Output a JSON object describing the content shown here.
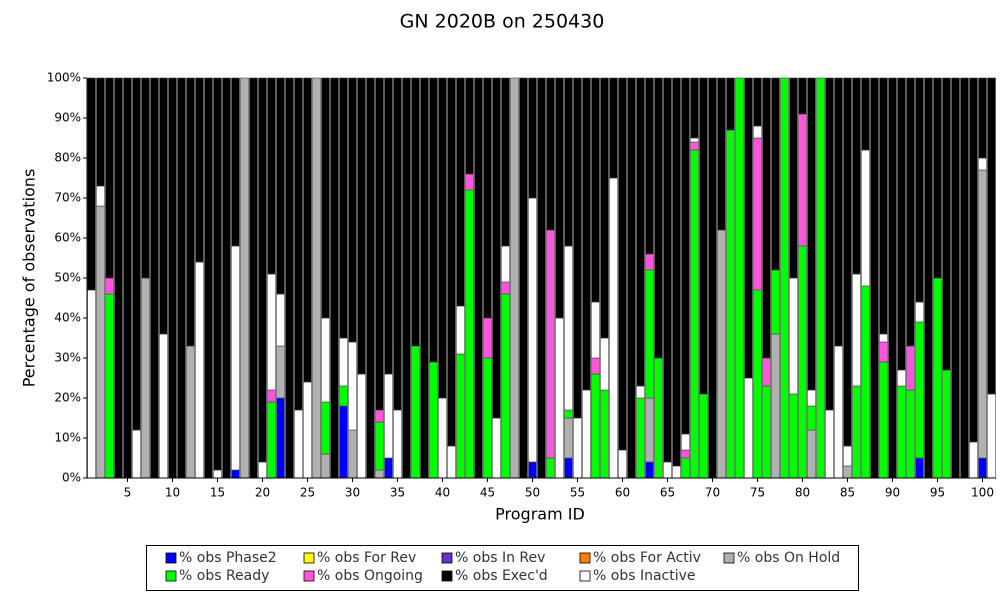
{
  "chart_data": {
    "type": "stacked_bar",
    "title": "GN 2020B on 250430",
    "x_label": "Program ID",
    "y_label": "Percentage of observations",
    "x": [
      1,
      2,
      3,
      4,
      5,
      6,
      7,
      8,
      9,
      10,
      11,
      12,
      13,
      14,
      15,
      16,
      17,
      18,
      19,
      20,
      21,
      22,
      23,
      24,
      25,
      26,
      27,
      28,
      29,
      30,
      31,
      32,
      33,
      34,
      35,
      36,
      37,
      38,
      39,
      40,
      41,
      42,
      43,
      44,
      45,
      46,
      47,
      48,
      49,
      50,
      51,
      52,
      53,
      54,
      55,
      56,
      57,
      58,
      59,
      60,
      61,
      62,
      63,
      64,
      65,
      66,
      67,
      68,
      69,
      70,
      71,
      72,
      73,
      74,
      75,
      76,
      77,
      78,
      79,
      80,
      81,
      82,
      83,
      84,
      85,
      86,
      87,
      88,
      89,
      90,
      91,
      92,
      93,
      94,
      95,
      96,
      97,
      98,
      99,
      100,
      101
    ],
    "xlim": [
      0.5,
      101.5
    ],
    "xticks": [
      5,
      10,
      15,
      20,
      25,
      30,
      35,
      40,
      45,
      50,
      55,
      60,
      65,
      70,
      75,
      80,
      85,
      90,
      95,
      100
    ],
    "ylim": [
      0,
      100
    ],
    "yticks": [
      {
        "value": 0,
        "label": "0%"
      },
      {
        "value": 10,
        "label": "10%"
      },
      {
        "value": 20,
        "label": "20%"
      },
      {
        "value": 30,
        "label": "30%"
      },
      {
        "value": 40,
        "label": "40%"
      },
      {
        "value": 50,
        "label": "50%"
      },
      {
        "value": 60,
        "label": "60%"
      },
      {
        "value": 70,
        "label": "70%"
      },
      {
        "value": 80,
        "label": "80%"
      },
      {
        "value": 90,
        "label": "90%"
      },
      {
        "value": 100,
        "label": "100%"
      }
    ],
    "series": [
      {
        "name": "% obs Phase2",
        "color": "#0000ff",
        "values": [
          0,
          0,
          0,
          0,
          0,
          0,
          0,
          0,
          0,
          0,
          0,
          0,
          0,
          0,
          0,
          0,
          2,
          0,
          0,
          0,
          0,
          20,
          0,
          0,
          0,
          0,
          0,
          0,
          18,
          0,
          0,
          0,
          0,
          5,
          0,
          0,
          0,
          0,
          0,
          0,
          0,
          0,
          0,
          0,
          0,
          0,
          0,
          0,
          0,
          4,
          0,
          0,
          0,
          5,
          0,
          0,
          0,
          0,
          0,
          0,
          0,
          0,
          4,
          0,
          0,
          0,
          0,
          0,
          0,
          0,
          0,
          0,
          0,
          0,
          0,
          0,
          0,
          0,
          0,
          0,
          0,
          0,
          0,
          0,
          0,
          0,
          0,
          0,
          0,
          0,
          0,
          0,
          5,
          0,
          0,
          0,
          0,
          0,
          0,
          5,
          0
        ]
      },
      {
        "name": "% obs For Rev",
        "color": "#ffff00",
        "values": [
          0,
          0,
          0,
          0,
          0,
          0,
          0,
          0,
          0,
          0,
          0,
          0,
          0,
          0,
          0,
          0,
          0,
          0,
          0,
          0,
          0,
          0,
          0,
          0,
          0,
          0,
          0,
          0,
          0,
          0,
          0,
          0,
          0,
          0,
          0,
          0,
          0,
          0,
          0,
          0,
          0,
          0,
          0,
          0,
          0,
          0,
          0,
          0,
          0,
          0,
          0,
          0,
          0,
          0,
          0,
          0,
          0,
          0,
          0,
          0,
          0,
          0,
          0,
          0,
          0,
          0,
          0,
          0,
          0,
          0,
          0,
          0,
          0,
          0,
          0,
          0,
          0,
          0,
          0,
          0,
          0,
          0,
          0,
          0,
          0,
          0,
          0,
          0,
          0,
          0,
          0,
          0,
          0,
          0,
          0,
          0,
          0,
          0,
          0,
          0,
          0
        ]
      },
      {
        "name": "% obs In Rev",
        "color": "#6633cc",
        "values": [
          0,
          0,
          0,
          0,
          0,
          0,
          0,
          0,
          0,
          0,
          0,
          0,
          0,
          0,
          0,
          0,
          0,
          0,
          0,
          0,
          0,
          0,
          0,
          0,
          0,
          0,
          0,
          0,
          0,
          0,
          0,
          0,
          0,
          0,
          0,
          0,
          0,
          0,
          0,
          0,
          0,
          0,
          0,
          0,
          0,
          0,
          0,
          0,
          0,
          0,
          0,
          0,
          0,
          0,
          0,
          0,
          0,
          0,
          0,
          0,
          0,
          0,
          0,
          0,
          0,
          0,
          0,
          0,
          0,
          0,
          0,
          0,
          0,
          0,
          0,
          0,
          0,
          0,
          0,
          0,
          0,
          0,
          0,
          0,
          0,
          0,
          0,
          0,
          0,
          0,
          0,
          0,
          0,
          0,
          0,
          0,
          0,
          0,
          0,
          0,
          0
        ]
      },
      {
        "name": "% obs For Activ",
        "color": "#ff8000",
        "values": [
          0,
          0,
          0,
          0,
          0,
          0,
          0,
          0,
          0,
          0,
          0,
          0,
          0,
          0,
          0,
          0,
          0,
          0,
          0,
          0,
          0,
          0,
          0,
          0,
          0,
          0,
          0,
          0,
          0,
          0,
          0,
          0,
          0,
          0,
          0,
          0,
          0,
          0,
          0,
          0,
          0,
          0,
          0,
          0,
          0,
          0,
          0,
          0,
          0,
          0,
          0,
          0,
          0,
          0,
          0,
          0,
          0,
          0,
          0,
          0,
          0,
          0,
          0,
          0,
          0,
          0,
          0,
          0,
          0,
          0,
          0,
          0,
          0,
          0,
          0,
          0,
          0,
          0,
          0,
          0,
          0,
          0,
          0,
          0,
          0,
          0,
          0,
          0,
          0,
          0,
          0,
          0,
          0,
          0,
          0,
          0,
          0,
          0,
          0,
          0,
          0
        ]
      },
      {
        "name": "% obs On Hold",
        "color": "#b0b0b0",
        "values": [
          0,
          68,
          0,
          0,
          0,
          0,
          50,
          0,
          0,
          0,
          0,
          33,
          0,
          0,
          0,
          0,
          0,
          100,
          0,
          0,
          0,
          13,
          0,
          0,
          0,
          100,
          6,
          0,
          0,
          12,
          0,
          0,
          2,
          0,
          0,
          0,
          0,
          0,
          0,
          0,
          0,
          0,
          0,
          0,
          0,
          0,
          0,
          100,
          0,
          0,
          0,
          0,
          0,
          10,
          0,
          0,
          0,
          0,
          0,
          0,
          0,
          0,
          16,
          0,
          0,
          0,
          0,
          0,
          0,
          0,
          62,
          0,
          0,
          0,
          0,
          0,
          36,
          0,
          0,
          0,
          12,
          0,
          0,
          0,
          3,
          0,
          0,
          0,
          0,
          0,
          0,
          0,
          0,
          0,
          0,
          0,
          0,
          0,
          0,
          72,
          0
        ]
      },
      {
        "name": "% obs Ready",
        "color": "#00ff00",
        "values": [
          0,
          0,
          46,
          0,
          0,
          0,
          0,
          0,
          0,
          0,
          0,
          0,
          0,
          0,
          0,
          0,
          0,
          0,
          0,
          0,
          19,
          0,
          0,
          0,
          0,
          0,
          13,
          0,
          5,
          0,
          0,
          0,
          12,
          0,
          0,
          0,
          33,
          0,
          29,
          0,
          0,
          31,
          72,
          0,
          30,
          0,
          46,
          0,
          0,
          0,
          0,
          5,
          0,
          2,
          0,
          0,
          26,
          22,
          0,
          0,
          0,
          20,
          32,
          30,
          0,
          0,
          5,
          82,
          21,
          0,
          0,
          87,
          100,
          0,
          47,
          23,
          16,
          100,
          21,
          58,
          6,
          100,
          0,
          0,
          0,
          23,
          48,
          0,
          29,
          0,
          23,
          22,
          34,
          0,
          50,
          27,
          0,
          0,
          0,
          0,
          0
        ]
      },
      {
        "name": "% obs Ongoing",
        "color": "#ff55dd",
        "values": [
          0,
          0,
          4,
          0,
          0,
          0,
          0,
          0,
          0,
          0,
          0,
          0,
          0,
          0,
          0,
          0,
          0,
          0,
          0,
          0,
          3,
          0,
          0,
          0,
          0,
          0,
          0,
          0,
          0,
          0,
          0,
          0,
          3,
          0,
          0,
          0,
          0,
          0,
          0,
          0,
          0,
          0,
          4,
          0,
          10,
          0,
          3,
          0,
          0,
          0,
          0,
          57,
          0,
          0,
          0,
          0,
          4,
          0,
          0,
          0,
          0,
          0,
          4,
          0,
          0,
          0,
          2,
          2,
          0,
          0,
          0,
          0,
          0,
          0,
          38,
          7,
          0,
          0,
          0,
          33,
          0,
          0,
          0,
          0,
          0,
          0,
          0,
          0,
          5,
          0,
          0,
          11,
          0,
          0,
          0,
          0,
          0,
          0,
          0,
          0,
          0
        ]
      },
      {
        "name": "% obs Exec'd",
        "color": "#000000",
        "values": [
          53,
          27,
          50,
          100,
          100,
          88,
          50,
          100,
          64,
          100,
          100,
          67,
          46,
          100,
          98,
          100,
          42,
          0,
          100,
          96,
          49,
          54,
          100,
          83,
          76,
          0,
          60,
          100,
          65,
          66,
          74,
          100,
          83,
          74,
          83,
          100,
          67,
          100,
          71,
          80,
          92,
          57,
          24,
          100,
          60,
          85,
          42,
          0,
          100,
          30,
          100,
          38,
          60,
          42,
          85,
          78,
          56,
          65,
          25,
          93,
          100,
          77,
          44,
          70,
          96,
          97,
          89,
          15,
          79,
          100,
          38,
          13,
          0,
          75,
          12,
          70,
          48,
          0,
          50,
          9,
          78,
          0,
          83,
          67,
          92,
          49,
          18,
          100,
          64,
          100,
          73,
          67,
          56,
          100,
          50,
          73,
          100,
          100,
          91,
          20,
          79
        ]
      },
      {
        "name": "% obs Inactive",
        "color": "#ffffff",
        "values": [
          47,
          5,
          0,
          0,
          0,
          12,
          0,
          0,
          36,
          0,
          0,
          0,
          54,
          0,
          2,
          0,
          56,
          0,
          0,
          4,
          29,
          13,
          0,
          17,
          24,
          0,
          21,
          0,
          12,
          22,
          26,
          0,
          0,
          21,
          17,
          0,
          0,
          0,
          0,
          20,
          8,
          12,
          0,
          0,
          0,
          15,
          9,
          0,
          0,
          66,
          0,
          0,
          40,
          41,
          15,
          22,
          14,
          13,
          75,
          7,
          0,
          3,
          0,
          0,
          4,
          3,
          4,
          1,
          0,
          0,
          0,
          0,
          0,
          25,
          3,
          0,
          0,
          0,
          29,
          0,
          4,
          0,
          17,
          33,
          5,
          28,
          34,
          0,
          2,
          0,
          4,
          0,
          5,
          0,
          0,
          0,
          0,
          0,
          9,
          3,
          21
        ]
      }
    ]
  }
}
